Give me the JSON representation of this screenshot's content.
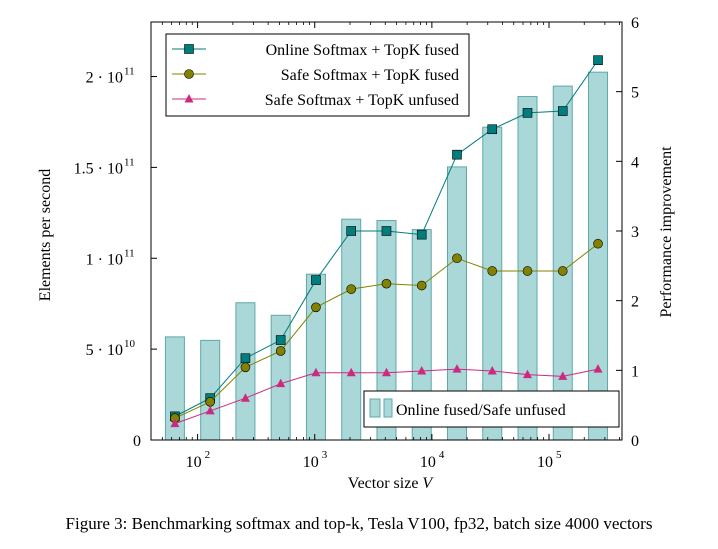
{
  "caption": "Figure 3: Benchmarking softmax and top-k, Tesla V100, fp32, batch size 4000 vectors",
  "chart_data": {
    "type": "line",
    "xlabel": "Vector size V",
    "ylabel_left": "Elements per second",
    "ylabel_right": "Performance improvement",
    "xscale": "log",
    "x": [
      64,
      128,
      256,
      512,
      1024,
      2048,
      4096,
      8192,
      16384,
      32768,
      65536,
      131072,
      262144
    ],
    "xlim": [
      40,
      420000
    ],
    "x_ticks": [
      {
        "v": 100,
        "base": "10",
        "exp": "2"
      },
      {
        "v": 1000,
        "base": "10",
        "exp": "3"
      },
      {
        "v": 10000,
        "base": "10",
        "exp": "4"
      },
      {
        "v": 100000,
        "base": "10",
        "exp": "5"
      }
    ],
    "ylim_left": [
      0,
      230000000000.0
    ],
    "y_ticks_left": [
      {
        "v": 0,
        "label": "0"
      },
      {
        "v": 50000000000.0,
        "label": "5 · 10",
        "exp": "10"
      },
      {
        "v": 100000000000.0,
        "label": "1 · 10",
        "exp": "11"
      },
      {
        "v": 150000000000.0,
        "label": "1.5 · 10",
        "exp": "11"
      },
      {
        "v": 200000000000.0,
        "label": "2 · 10",
        "exp": "11"
      }
    ],
    "ylim_right": [
      0,
      6
    ],
    "y_ticks_right": [
      {
        "v": 0,
        "label": "0"
      },
      {
        "v": 1,
        "label": "1"
      },
      {
        "v": 2,
        "label": "2"
      },
      {
        "v": 3,
        "label": "3"
      },
      {
        "v": 4,
        "label": "4"
      },
      {
        "v": 5,
        "label": "5"
      },
      {
        "v": 6,
        "label": "6"
      }
    ],
    "series": [
      {
        "name": "Online Softmax + TopK fused",
        "axis": "left",
        "color": "#007d7d",
        "marker": "square",
        "values": [
          13000000000.0,
          23000000000.0,
          45000000000.0,
          55000000000.0,
          88000000000.0,
          115000000000.0,
          115000000000.0,
          113000000000.0,
          157000000000.0,
          171000000000.0,
          180000000000.0,
          181000000000.0,
          209000000000.0
        ]
      },
      {
        "name": "Safe Softmax + TopK fused",
        "axis": "left",
        "color": "#828200",
        "marker": "circle",
        "values": [
          12000000000.0,
          21000000000.0,
          40000000000.0,
          49000000000.0,
          73000000000.0,
          83000000000.0,
          86000000000.0,
          85000000000.0,
          100000000000.0,
          93000000000.0,
          93000000000.0,
          93000000000.0,
          108000000000.0
        ]
      },
      {
        "name": "Safe Softmax + TopK unfused",
        "axis": "left",
        "color": "#cc2a80",
        "marker": "triangle",
        "values": [
          9000000000.0,
          16000000000.0,
          23000000000.0,
          31000000000.0,
          37000000000.0,
          37000000000.0,
          37000000000.0,
          38000000000.0,
          39000000000.0,
          38000000000.0,
          36000000000.0,
          35000000000.0,
          39000000000.0
        ]
      },
      {
        "name": "Online fused/Safe unfused",
        "axis": "right",
        "type": "bar",
        "color": "#aad7d7",
        "stroke": "#5fa8a8",
        "values": [
          1.48,
          1.43,
          1.97,
          1.79,
          2.38,
          3.17,
          3.15,
          3.02,
          3.92,
          4.49,
          4.93,
          5.08,
          5.28
        ]
      }
    ],
    "legend": {
      "placement": "top-left"
    },
    "bar_legend": {
      "placement": "bottom-right"
    },
    "grid": false
  }
}
